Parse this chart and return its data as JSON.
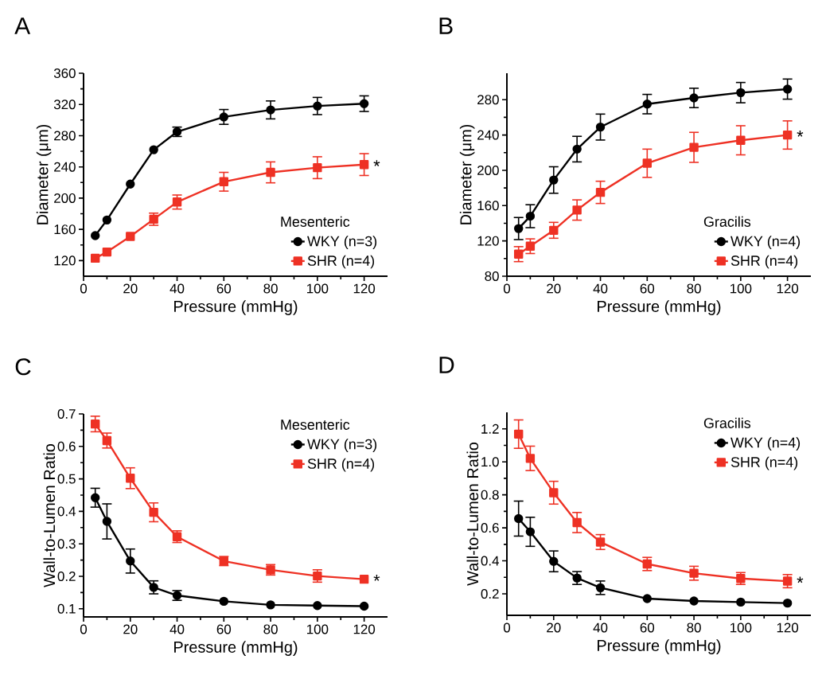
{
  "chart_data": [
    {
      "type": "line",
      "title": "A",
      "xlabel": "Pressure (mmHg)",
      "ylabel": "Diameter (μm)",
      "legend_title": "Mesenteric",
      "legend": "bottom right",
      "grid": false,
      "x": [
        5,
        10,
        20,
        30,
        40,
        60,
        80,
        100,
        120
      ],
      "xlim": [
        0,
        130
      ],
      "xticks": [
        0,
        20,
        40,
        60,
        80,
        100,
        120
      ],
      "ylim": [
        100,
        360
      ],
      "yticks": [
        120,
        160,
        200,
        240,
        280,
        320,
        360
      ],
      "series": [
        {
          "name": "WKY (n=3)",
          "color": "#000000",
          "marker": "circle",
          "values": [
            152,
            172,
            218,
            262,
            285,
            304,
            313,
            318,
            321
          ],
          "errors": [
            null,
            null,
            null,
            null,
            6,
            9.5,
            11.5,
            11,
            10
          ]
        },
        {
          "name": "SHR (n=4)",
          "color": "#ee3124",
          "marker": "square",
          "values": [
            123,
            131,
            151,
            173,
            195,
            221,
            233,
            239,
            243
          ],
          "errors": [
            null,
            null,
            null,
            7.8,
            9,
            12,
            13.4,
            14,
            14
          ]
        }
      ],
      "annotations": [
        "*"
      ]
    },
    {
      "type": "line",
      "title": "B",
      "xlabel": "Pressure (mmHg)",
      "ylabel": "Diameter (μm)",
      "legend_title": "Gracilis",
      "legend": "bottom right",
      "grid": false,
      "x": [
        5,
        10,
        20,
        30,
        40,
        60,
        80,
        100,
        120
      ],
      "xlim": [
        0,
        130
      ],
      "xticks": [
        0,
        20,
        40,
        60,
        80,
        100,
        120
      ],
      "ylim": [
        80,
        310
      ],
      "yticks": [
        80,
        120,
        160,
        200,
        240,
        280
      ],
      "series": [
        {
          "name": "WKY (n=4)",
          "color": "#000000",
          "marker": "circle",
          "values": [
            134,
            148,
            189,
            224,
            249,
            275,
            282,
            288,
            292
          ],
          "errors": [
            12.5,
            13,
            15,
            14.5,
            14.7,
            11,
            11,
            11.5,
            11.4
          ]
        },
        {
          "name": "SHR (n=4)",
          "color": "#ee3124",
          "marker": "square",
          "values": [
            105,
            114,
            132,
            155,
            175,
            208,
            226,
            234,
            240
          ],
          "errors": [
            8.5,
            8.3,
            9,
            11.5,
            12.6,
            16,
            17,
            16.5,
            16
          ]
        }
      ],
      "annotations": [
        "*"
      ]
    },
    {
      "type": "line",
      "title": "C",
      "xlabel": "Pressure (mmHg)",
      "ylabel": "Wall-to-Lumen Ratio",
      "legend_title": "Mesenteric",
      "legend": "top right",
      "grid": false,
      "x": [
        5,
        10,
        20,
        30,
        40,
        60,
        80,
        100,
        120
      ],
      "xlim": [
        0,
        130
      ],
      "xticks": [
        0,
        20,
        40,
        60,
        80,
        100,
        120
      ],
      "ylim": [
        0.075,
        0.7
      ],
      "yticks": [
        0.1,
        0.2,
        0.3,
        0.4,
        0.5,
        0.6,
        0.7
      ],
      "series": [
        {
          "name": "WKY (n=3)",
          "color": "#000000",
          "marker": "circle",
          "values": [
            0.442,
            0.369,
            0.247,
            0.166,
            0.141,
            0.123,
            0.112,
            0.11,
            0.108
          ],
          "errors": [
            0.029,
            0.054,
            0.037,
            0.02,
            0.015,
            null,
            null,
            null,
            null
          ]
        },
        {
          "name": "SHR (n=4)",
          "color": "#ee3124",
          "marker": "square",
          "values": [
            0.669,
            0.618,
            0.502,
            0.397,
            0.322,
            0.247,
            0.22,
            0.201,
            0.191
          ],
          "errors": [
            0.024,
            0.023,
            0.032,
            0.029,
            0.018,
            0.014,
            0.016,
            0.019,
            null
          ]
        }
      ],
      "annotations": [
        "*"
      ]
    },
    {
      "type": "line",
      "title": "D",
      "xlabel": "Pressure (mmHg)",
      "ylabel": "Wall-to-Lumen Ratio",
      "legend_title": "Gracilis",
      "legend": "top right",
      "grid": false,
      "x": [
        5,
        10,
        20,
        30,
        40,
        60,
        80,
        100,
        120
      ],
      "xlim": [
        0,
        130
      ],
      "xticks": [
        0,
        20,
        40,
        60,
        80,
        100,
        120
      ],
      "ylim": [
        0.07,
        1.3
      ],
      "yticks": [
        0.2,
        0.4,
        0.6,
        0.8,
        {
          "value": 1.0,
          "label": "1.0"
        },
        1.2
      ],
      "series": [
        {
          "name": "WKY (n=4)",
          "color": "#000000",
          "marker": "circle",
          "values": [
            0.656,
            0.576,
            0.397,
            0.296,
            0.237,
            0.171,
            0.157,
            0.15,
            0.144
          ],
          "errors": [
            0.106,
            0.088,
            0.063,
            0.039,
            0.041,
            null,
            null,
            null,
            null
          ]
        },
        {
          "name": "SHR (n=4)",
          "color": "#ee3124",
          "marker": "square",
          "values": [
            1.168,
            1.021,
            0.813,
            0.632,
            0.514,
            0.381,
            0.325,
            0.293,
            0.277
          ],
          "errors": [
            0.086,
            0.074,
            0.069,
            0.061,
            0.045,
            0.04,
            0.042,
            0.036,
            0.04
          ]
        }
      ],
      "annotations": [
        "*"
      ]
    }
  ]
}
